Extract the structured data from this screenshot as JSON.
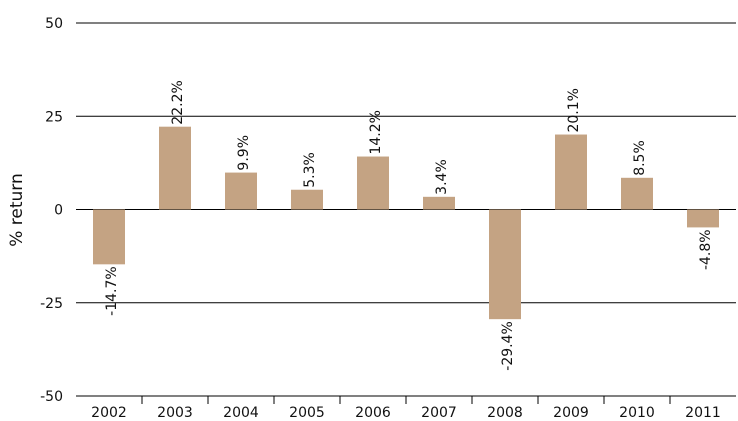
{
  "chart_data": {
    "type": "bar",
    "title": "",
    "xlabel": "",
    "ylabel": "% return",
    "categories": [
      "2002",
      "2003",
      "2004",
      "2005",
      "2006",
      "2007",
      "2008",
      "2009",
      "2010",
      "2011"
    ],
    "values": [
      -14.7,
      22.2,
      9.9,
      5.3,
      14.2,
      3.4,
      -29.4,
      20.1,
      8.5,
      -4.8
    ],
    "data_labels": [
      "-14.7%",
      "22.2%",
      "9.9%",
      "5.3%",
      "14.2%",
      "3.4%",
      "-29.4%",
      "20.1%",
      "8.5%",
      "-4.8%"
    ],
    "ylim": [
      -50,
      50
    ],
    "yticks": [
      50,
      25,
      0,
      -25,
      -50
    ],
    "grid": true,
    "bar_color": "#c4a383"
  }
}
